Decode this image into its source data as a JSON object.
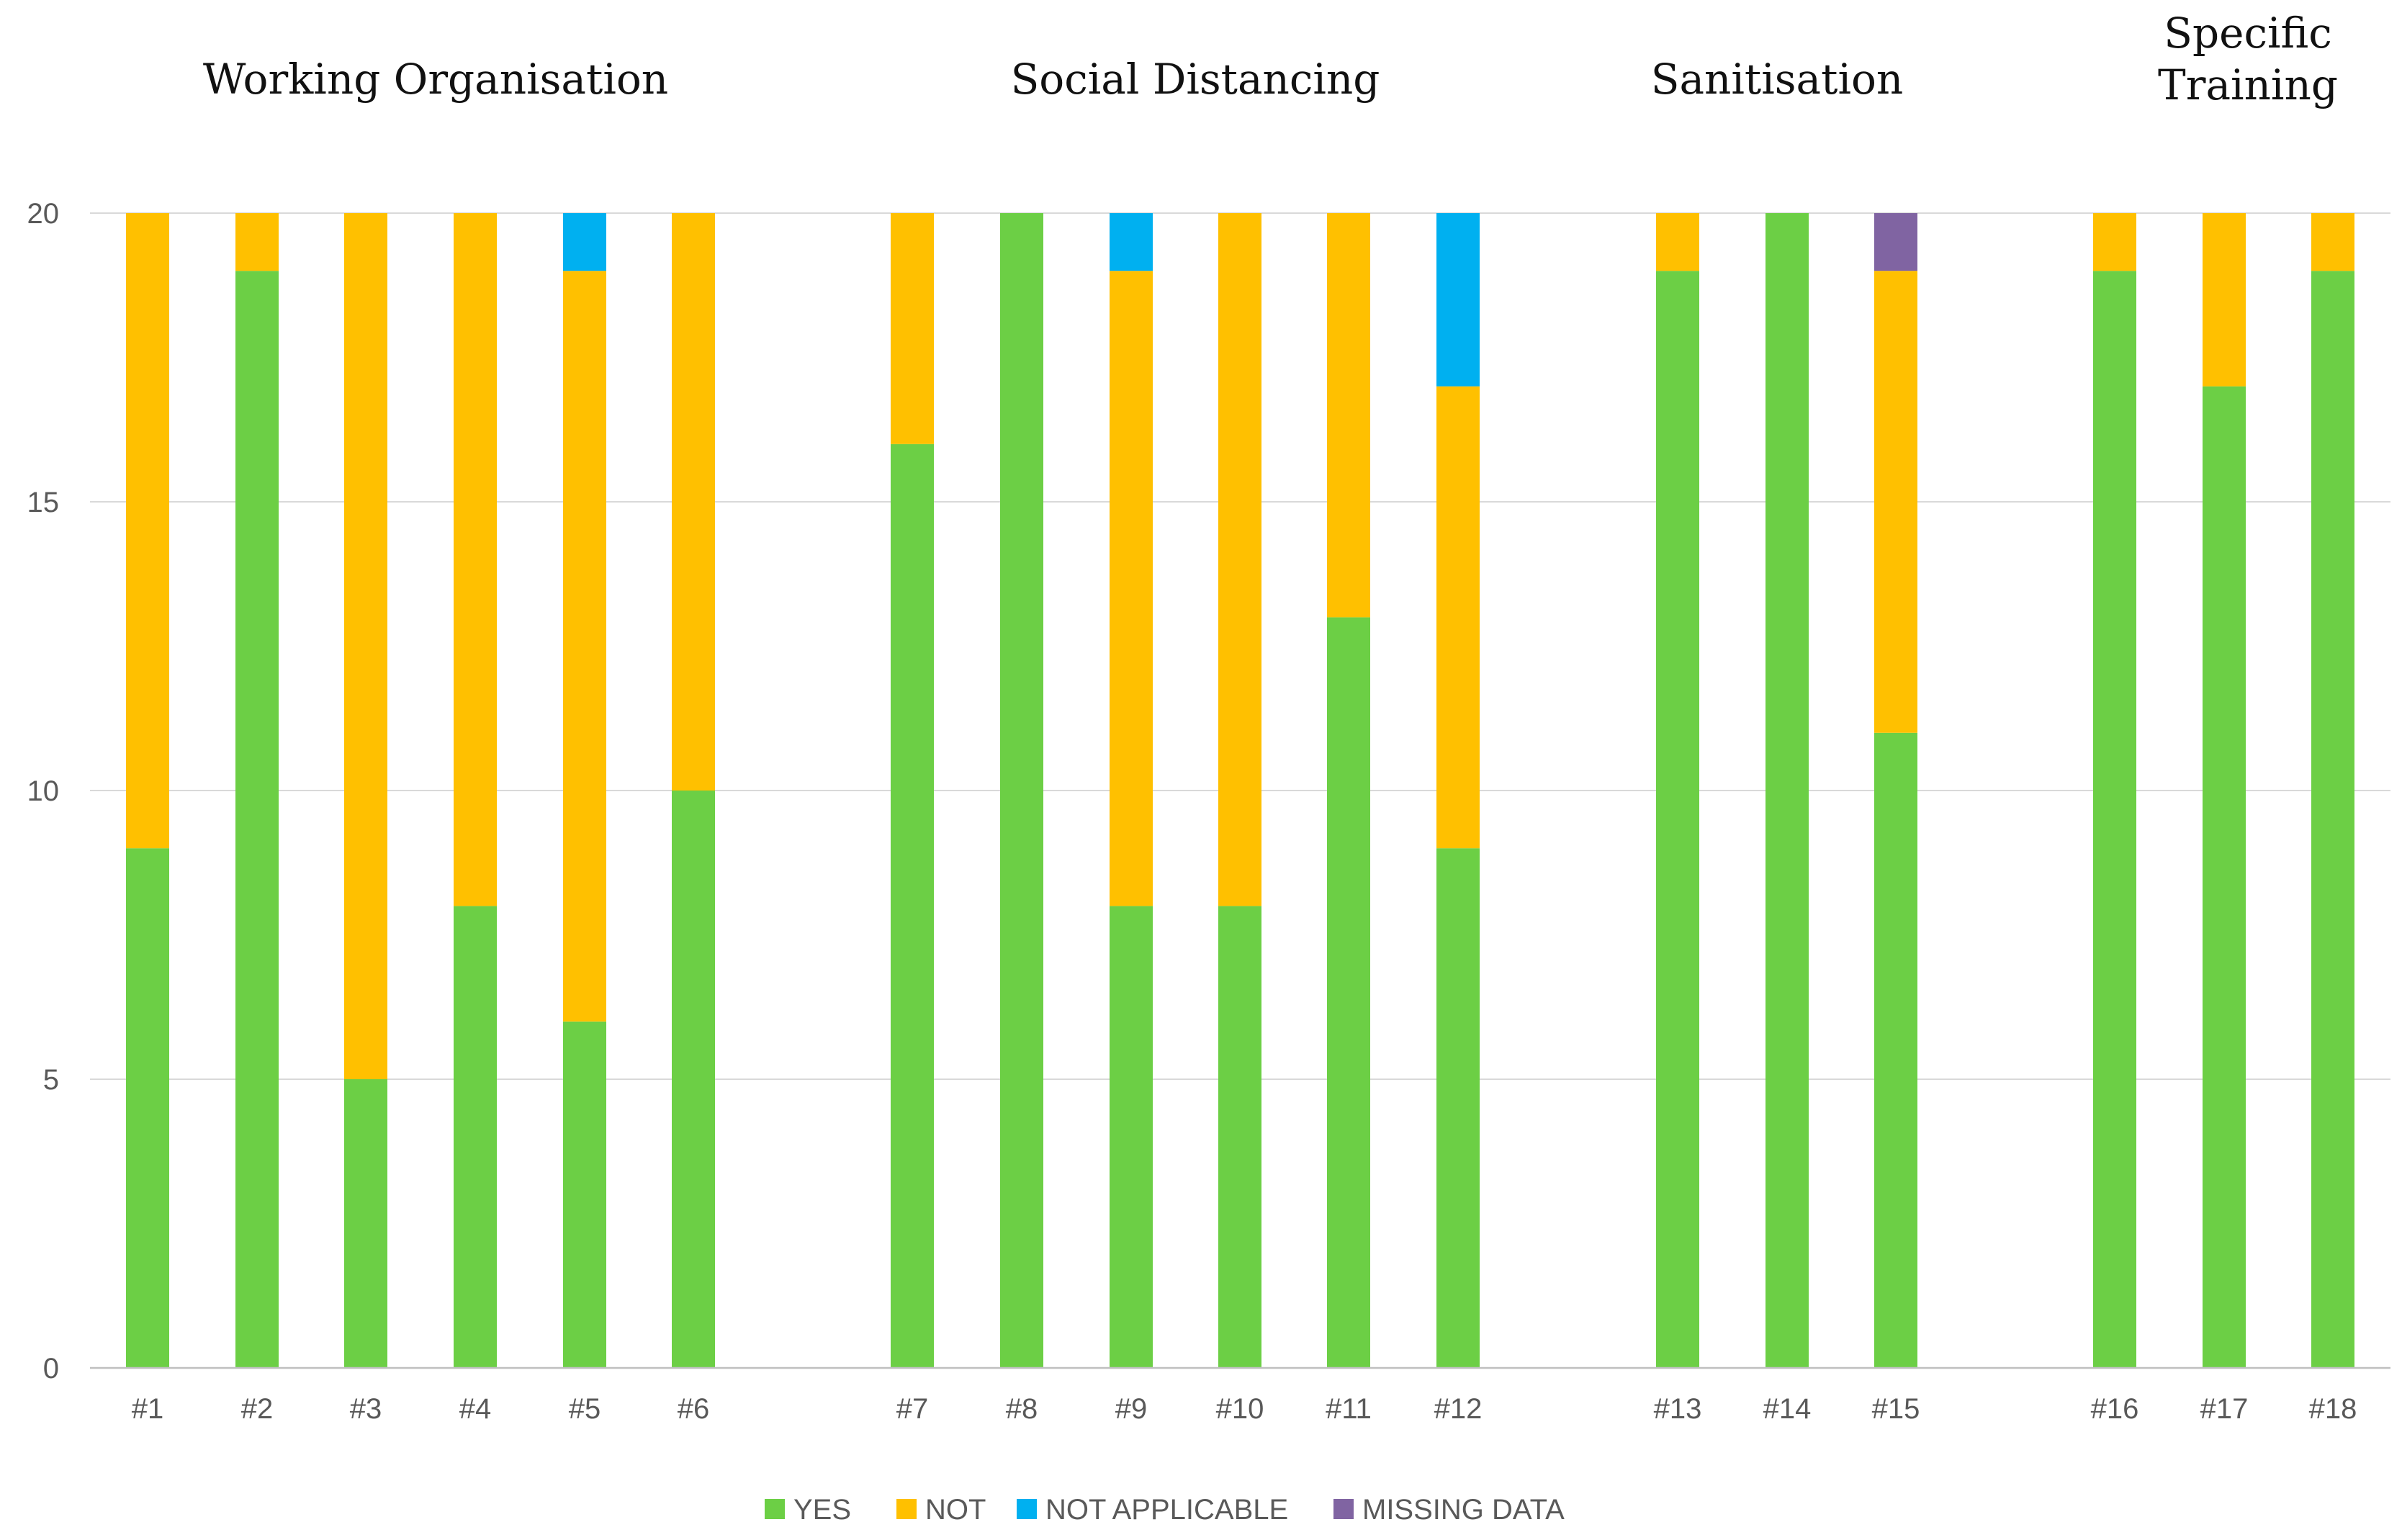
{
  "chart_data": {
    "type": "bar",
    "stacked": true,
    "title": "",
    "xlabel": "",
    "ylabel": "",
    "ylim": [
      0,
      20
    ],
    "y_ticks": [
      "0",
      "5",
      "10",
      "15",
      "20"
    ],
    "grid": true,
    "legend_position": "bottom",
    "groups": [
      {
        "title_lines": [
          "Working Organisation"
        ],
        "categories": [
          "#1",
          "#2",
          "#3",
          "#4",
          "#5",
          "#6"
        ]
      },
      {
        "title_lines": [
          "Social Distancing"
        ],
        "categories": [
          "#7",
          "#8",
          "#9",
          "#10",
          "#11",
          "#12"
        ]
      },
      {
        "title_lines": [
          "Sanitisation"
        ],
        "categories": [
          "#13",
          "#14",
          "#15"
        ]
      },
      {
        "title_lines": [
          "Specific",
          "Training"
        ],
        "categories": [
          "#16",
          "#17",
          "#18"
        ]
      }
    ],
    "categories": [
      "#1",
      "#2",
      "#3",
      "#4",
      "#5",
      "#6",
      "#7",
      "#8",
      "#9",
      "#10",
      "#11",
      "#12",
      "#13",
      "#14",
      "#15",
      "#16",
      "#17",
      "#18"
    ],
    "series": [
      {
        "name": "YES",
        "color": "#6ccf45",
        "values": [
          9,
          19,
          5,
          8,
          6,
          10,
          16,
          20,
          8,
          8,
          13,
          9,
          19,
          20,
          11,
          19,
          17,
          19
        ]
      },
      {
        "name": "NOT",
        "color": "#ffc000",
        "values": [
          11,
          1,
          15,
          12,
          13,
          10,
          4,
          0,
          11,
          12,
          7,
          8,
          1,
          0,
          8,
          1,
          3,
          1
        ]
      },
      {
        "name": "NOT APPLICABLE",
        "color": "#00b0f0",
        "values": [
          0,
          0,
          0,
          0,
          1,
          0,
          0,
          0,
          1,
          0,
          0,
          3,
          0,
          0,
          0,
          0,
          0,
          0
        ]
      },
      {
        "name": "MISSING DATA",
        "color": "#8064a2",
        "values": [
          0,
          0,
          0,
          0,
          0,
          0,
          0,
          0,
          0,
          0,
          0,
          0,
          0,
          0,
          1,
          0,
          0,
          0
        ]
      }
    ]
  }
}
